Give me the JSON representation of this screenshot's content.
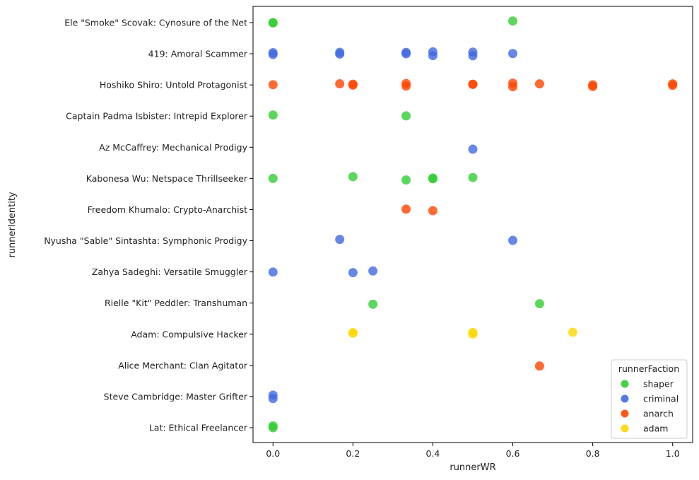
{
  "chart_data": {
    "type": "scatter",
    "title": "",
    "xlabel": "runnerWR",
    "ylabel": "runnerIdentity",
    "xlim": [
      -0.05,
      1.05
    ],
    "xticks": [
      "0.0",
      "0.2",
      "0.4",
      "0.6",
      "0.8",
      "1.0"
    ],
    "xtick_values": [
      0,
      0.2,
      0.4,
      0.6,
      0.8,
      1.0
    ],
    "grid": false,
    "legend": {
      "title": "runnerFaction",
      "placement": "lower-right",
      "entries": [
        "shaper",
        "criminal",
        "anarch",
        "adam"
      ]
    },
    "colors": {
      "shaper": "#32cd32",
      "criminal": "#4169e1",
      "anarch": "#ff4500",
      "adam": "#ffd700"
    },
    "categories": [
      "Ele \"Smoke\" Scovak: Cynosure of the Net",
      "419: Amoral Scammer",
      "Hoshiko Shiro: Untold Protagonist",
      "Captain Padma Isbister: Intrepid Explorer",
      "Az McCaffrey: Mechanical Prodigy",
      "Kabonesa Wu: Netspace Thrillseeker",
      "Freedom Khumalo: Crypto-Anarchist",
      "Nyusha \"Sable\" Sintashta: Symphonic Prodigy",
      "Zahya Sadeghi: Versatile Smuggler",
      "Rielle \"Kit\" Peddler: Transhuman",
      "Adam: Compulsive Hacker",
      "Alice Merchant: Clan Agitator",
      "Steve Cambridge: Master Grifter",
      "Lat: Ethical Freelancer"
    ],
    "series": [
      {
        "name": "shaper",
        "points": [
          {
            "x": 0.0,
            "y": "Ele \"Smoke\" Scovak: Cynosure of the Net"
          },
          {
            "x": 0.0,
            "y": "Ele \"Smoke\" Scovak: Cynosure of the Net"
          },
          {
            "x": 0.6,
            "y": "Ele \"Smoke\" Scovak: Cynosure of the Net"
          },
          {
            "x": 0.0,
            "y": "Captain Padma Isbister: Intrepid Explorer"
          },
          {
            "x": 0.333,
            "y": "Captain Padma Isbister: Intrepid Explorer"
          },
          {
            "x": 0.0,
            "y": "Kabonesa Wu: Netspace Thrillseeker"
          },
          {
            "x": 0.2,
            "y": "Kabonesa Wu: Netspace Thrillseeker"
          },
          {
            "x": 0.333,
            "y": "Kabonesa Wu: Netspace Thrillseeker"
          },
          {
            "x": 0.4,
            "y": "Kabonesa Wu: Netspace Thrillseeker"
          },
          {
            "x": 0.4,
            "y": "Kabonesa Wu: Netspace Thrillseeker"
          },
          {
            "x": 0.5,
            "y": "Kabonesa Wu: Netspace Thrillseeker"
          },
          {
            "x": 0.25,
            "y": "Rielle \"Kit\" Peddler: Transhuman"
          },
          {
            "x": 0.667,
            "y": "Rielle \"Kit\" Peddler: Transhuman"
          },
          {
            "x": 0.0,
            "y": "Lat: Ethical Freelancer"
          },
          {
            "x": 0.0,
            "y": "Lat: Ethical Freelancer"
          }
        ]
      },
      {
        "name": "criminal",
        "points": [
          {
            "x": 0.0,
            "y": "419: Amoral Scammer"
          },
          {
            "x": 0.0,
            "y": "419: Amoral Scammer"
          },
          {
            "x": 0.167,
            "y": "419: Amoral Scammer"
          },
          {
            "x": 0.167,
            "y": "419: Amoral Scammer"
          },
          {
            "x": 0.333,
            "y": "419: Amoral Scammer"
          },
          {
            "x": 0.333,
            "y": "419: Amoral Scammer"
          },
          {
            "x": 0.4,
            "y": "419: Amoral Scammer"
          },
          {
            "x": 0.4,
            "y": "419: Amoral Scammer"
          },
          {
            "x": 0.5,
            "y": "419: Amoral Scammer"
          },
          {
            "x": 0.5,
            "y": "419: Amoral Scammer"
          },
          {
            "x": 0.6,
            "y": "419: Amoral Scammer"
          },
          {
            "x": 0.5,
            "y": "Az McCaffrey: Mechanical Prodigy"
          },
          {
            "x": 0.167,
            "y": "Nyusha \"Sable\" Sintashta: Symphonic Prodigy"
          },
          {
            "x": 0.6,
            "y": "Nyusha \"Sable\" Sintashta: Symphonic Prodigy"
          },
          {
            "x": 0.0,
            "y": "Zahya Sadeghi: Versatile Smuggler"
          },
          {
            "x": 0.2,
            "y": "Zahya Sadeghi: Versatile Smuggler"
          },
          {
            "x": 0.25,
            "y": "Zahya Sadeghi: Versatile Smuggler"
          },
          {
            "x": 0.0,
            "y": "Steve Cambridge: Master Grifter"
          },
          {
            "x": 0.0,
            "y": "Steve Cambridge: Master Grifter"
          }
        ]
      },
      {
        "name": "anarch",
        "points": [
          {
            "x": 0.0,
            "y": "Hoshiko Shiro: Untold Protagonist"
          },
          {
            "x": 0.167,
            "y": "Hoshiko Shiro: Untold Protagonist"
          },
          {
            "x": 0.2,
            "y": "Hoshiko Shiro: Untold Protagonist"
          },
          {
            "x": 0.2,
            "y": "Hoshiko Shiro: Untold Protagonist"
          },
          {
            "x": 0.333,
            "y": "Hoshiko Shiro: Untold Protagonist"
          },
          {
            "x": 0.333,
            "y": "Hoshiko Shiro: Untold Protagonist"
          },
          {
            "x": 0.5,
            "y": "Hoshiko Shiro: Untold Protagonist"
          },
          {
            "x": 0.5,
            "y": "Hoshiko Shiro: Untold Protagonist"
          },
          {
            "x": 0.6,
            "y": "Hoshiko Shiro: Untold Protagonist"
          },
          {
            "x": 0.6,
            "y": "Hoshiko Shiro: Untold Protagonist"
          },
          {
            "x": 0.667,
            "y": "Hoshiko Shiro: Untold Protagonist"
          },
          {
            "x": 0.8,
            "y": "Hoshiko Shiro: Untold Protagonist"
          },
          {
            "x": 0.8,
            "y": "Hoshiko Shiro: Untold Protagonist"
          },
          {
            "x": 1.0,
            "y": "Hoshiko Shiro: Untold Protagonist"
          },
          {
            "x": 1.0,
            "y": "Hoshiko Shiro: Untold Protagonist"
          },
          {
            "x": 0.333,
            "y": "Freedom Khumalo: Crypto-Anarchist"
          },
          {
            "x": 0.4,
            "y": "Freedom Khumalo: Crypto-Anarchist"
          },
          {
            "x": 0.667,
            "y": "Alice Merchant: Clan Agitator"
          }
        ]
      },
      {
        "name": "adam",
        "points": [
          {
            "x": 0.2,
            "y": "Adam: Compulsive Hacker"
          },
          {
            "x": 0.2,
            "y": "Adam: Compulsive Hacker"
          },
          {
            "x": 0.5,
            "y": "Adam: Compulsive Hacker"
          },
          {
            "x": 0.5,
            "y": "Adam: Compulsive Hacker"
          },
          {
            "x": 0.75,
            "y": "Adam: Compulsive Hacker"
          }
        ]
      }
    ]
  }
}
